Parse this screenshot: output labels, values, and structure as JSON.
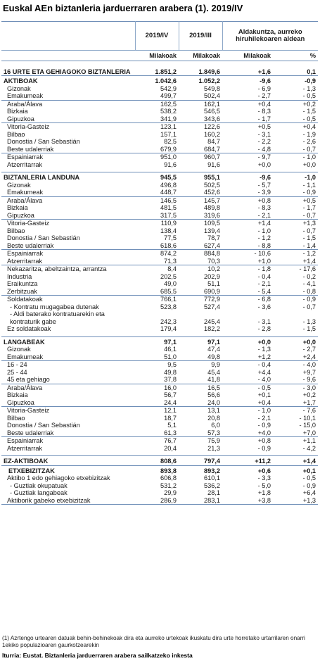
{
  "title": "Euskal AEn biztanleria jarduerraren arabera (1). 2019/IV",
  "headers": {
    "col1": "2019/IV",
    "col2": "2019/III",
    "col3": "Aldakuntza, aurreko hiruhilekoaren aldean",
    "unit1": "Milakoak",
    "unit2": "Milakoak",
    "unit3": "Milakoak",
    "unit4": "%"
  },
  "rows": [
    {
      "label": "16 URTE ETA GEHIAGOKO BIZTANLERIA",
      "v1": "1.851,2",
      "v2": "1.849,6",
      "v3": "+1,6",
      "v4": "0,1",
      "style": "big"
    },
    {
      "label": "AKTIBOAK",
      "v1": "1.042,6",
      "v2": "1.052,2",
      "v3": "-9,6",
      "v4": "-0,9",
      "style": "main"
    },
    {
      "label": "Gizonak",
      "v1": "542,9",
      "v2": "549,8",
      "v3": "- 6,9",
      "v4": "- 1,3",
      "style": "ind1"
    },
    {
      "label": "Emakumeak",
      "v1": "499,7",
      "v2": "502,4",
      "v3": "- 2,7",
      "v4": "- 0,5",
      "style": "ind1"
    },
    {
      "label": "Araba/Álava",
      "v1": "162,5",
      "v2": "162,1",
      "v3": "+0,4",
      "v4": "+0,2",
      "style": "ind1 sep"
    },
    {
      "label": "Bizkaia",
      "v1": "538,2",
      "v2": "546,5",
      "v3": "- 8,3",
      "v4": "- 1,5",
      "style": "ind1"
    },
    {
      "label": "Gipuzkoa",
      "v1": "341,9",
      "v2": "343,6",
      "v3": "- 1,7",
      "v4": "- 0,5",
      "style": "ind1"
    },
    {
      "label": "Vitoria-Gasteiz",
      "v1": "123,1",
      "v2": "122,6",
      "v3": "+0,5",
      "v4": "+0,4",
      "style": "ind1 sep"
    },
    {
      "label": "Bilbao",
      "v1": "157,1",
      "v2": "160,2",
      "v3": "- 3,1",
      "v4": "- 1,9",
      "style": "ind1"
    },
    {
      "label": "Donostia / San Sebastián",
      "v1": "82,5",
      "v2": "84,7",
      "v3": "- 2,2",
      "v4": "- 2,6",
      "style": "ind1"
    },
    {
      "label": "Beste udalerriak",
      "v1": "679,9",
      "v2": "684,7",
      "v3": "- 4,8",
      "v4": "- 0,7",
      "style": "ind1"
    },
    {
      "label": "Espainiarrak",
      "v1": "951,0",
      "v2": "960,7",
      "v3": "- 9,7",
      "v4": "- 1,0",
      "style": "ind1 sep"
    },
    {
      "label": "Atzerritarrak",
      "v1": "91,6",
      "v2": "91,6",
      "v3": "+0,0",
      "v4": "+0,0",
      "style": "ind1"
    },
    {
      "label": "",
      "v1": "",
      "v2": "",
      "v3": "",
      "v4": "",
      "style": "spc"
    },
    {
      "label": "BIZTANLERIA LANDUNA",
      "v1": "945,5",
      "v2": "955,1",
      "v3": "-9,6",
      "v4": "-1,0",
      "style": "main"
    },
    {
      "label": "Gizonak",
      "v1": "496,8",
      "v2": "502,5",
      "v3": "- 5,7",
      "v4": "- 1,1",
      "style": "ind1"
    },
    {
      "label": "Emakumeak",
      "v1": "448,7",
      "v2": "452,6",
      "v3": "- 3,9",
      "v4": "- 0,9",
      "style": "ind1"
    },
    {
      "label": "Araba/Álava",
      "v1": "146,5",
      "v2": "145,7",
      "v3": "+0,8",
      "v4": "+0,5",
      "style": "ind1 sep"
    },
    {
      "label": "Bizkaia",
      "v1": "481,5",
      "v2": "489,8",
      "v3": "- 8,3",
      "v4": "- 1,7",
      "style": "ind1"
    },
    {
      "label": "Gipuzkoa",
      "v1": "317,5",
      "v2": "319,6",
      "v3": "- 2,1",
      "v4": "- 0,7",
      "style": "ind1"
    },
    {
      "label": "Vitoria-Gasteiz",
      "v1": "110,9",
      "v2": "109,5",
      "v3": "+1,4",
      "v4": "+1,3",
      "style": "ind1 sep"
    },
    {
      "label": "Bilbao",
      "v1": "138,4",
      "v2": "139,4",
      "v3": "- 1,0",
      "v4": "- 0,7",
      "style": "ind1"
    },
    {
      "label": "Donostia / San Sebastián",
      "v1": "77,5",
      "v2": "78,7",
      "v3": "- 1,2",
      "v4": "- 1,5",
      "style": "ind1"
    },
    {
      "label": "Beste udalerriak",
      "v1": "618,6",
      "v2": "627,4",
      "v3": "- 8,8",
      "v4": "- 1,4",
      "style": "ind1"
    },
    {
      "label": "Espainiarrak",
      "v1": "874,2",
      "v2": "884,8",
      "v3": "- 10,6",
      "v4": "- 1,2",
      "style": "ind1 sep"
    },
    {
      "label": "Atzerritarrak",
      "v1": "71,3",
      "v2": "70,3",
      "v3": "+1,0",
      "v4": "+1,4",
      "style": "ind1"
    },
    {
      "label": "Nekazaritza, abeltzaintza, arrantza",
      "v1": "8,4",
      "v2": "10,2",
      "v3": "- 1,8",
      "v4": "- 17,6",
      "style": "ind1 sep"
    },
    {
      "label": "Industria",
      "v1": "202,5",
      "v2": "202,9",
      "v3": "- 0,4",
      "v4": "- 0,2",
      "style": "ind1"
    },
    {
      "label": "Eraikuntza",
      "v1": "49,0",
      "v2": "51,1",
      "v3": "- 2,1",
      "v4": "- 4,1",
      "style": "ind1"
    },
    {
      "label": "Zerbitzuak",
      "v1": "685,5",
      "v2": "690,9",
      "v3": "- 5,4",
      "v4": "- 0,8",
      "style": "ind1"
    },
    {
      "label": "Soldatakoak",
      "v1": "766,1",
      "v2": "772,9",
      "v3": "- 6,8",
      "v4": "- 0,9",
      "style": "ind1 sep"
    },
    {
      "label": "- Kontratu mugagabea dutenak",
      "v1": "523,8",
      "v2": "527,4",
      "v3": "- 3,6",
      "v4": "- 0,7",
      "style": "ind2"
    },
    {
      "label": "- Aldi baterako kontratuarekin eta kontraturik gabe",
      "v1": "242,3",
      "v2": "245,4",
      "v3": "- 3,1",
      "v4": "- 1,3",
      "style": "ind2 tall"
    },
    {
      "label": "Ez soldatakoak",
      "v1": "179,4",
      "v2": "182,2",
      "v3": "- 2,8",
      "v4": "- 1,5",
      "style": "ind1"
    },
    {
      "label": "",
      "v1": "",
      "v2": "",
      "v3": "",
      "v4": "",
      "style": "spc"
    },
    {
      "label": "LANGABEAK",
      "v1": "97,1",
      "v2": "97,1",
      "v3": "+0,0",
      "v4": "+0,0",
      "style": "main"
    },
    {
      "label": "Gizonak",
      "v1": "46,1",
      "v2": "47,4",
      "v3": "- 1,3",
      "v4": "- 2,7",
      "style": "ind1"
    },
    {
      "label": "Emakumeak",
      "v1": "51,0",
      "v2": "49,8",
      "v3": "+1,2",
      "v4": "+2,4",
      "style": "ind1"
    },
    {
      "label": "16 - 24",
      "v1": "9,5",
      "v2": "9,9",
      "v3": "- 0,4",
      "v4": "- 4,0",
      "style": "ind1 sep"
    },
    {
      "label": "25 - 44",
      "v1": "49,8",
      "v2": "45,4",
      "v3": "+4,4",
      "v4": "+9,7",
      "style": "ind1"
    },
    {
      "label": "45 eta gehiago",
      "v1": "37,8",
      "v2": "41,8",
      "v3": "- 4,0",
      "v4": "- 9,6",
      "style": "ind1"
    },
    {
      "label": "Araba/Álava",
      "v1": "16,0",
      "v2": "16,5",
      "v3": "- 0,5",
      "v4": "- 3,0",
      "style": "ind1 sep"
    },
    {
      "label": "Bizkaia",
      "v1": "56,7",
      "v2": "56,6",
      "v3": "+0,1",
      "v4": "+0,2",
      "style": "ind1"
    },
    {
      "label": "Gipuzkoa",
      "v1": "24,4",
      "v2": "24,0",
      "v3": "+0,4",
      "v4": "+1,7",
      "style": "ind1"
    },
    {
      "label": "Vitoria-Gasteiz",
      "v1": "12,1",
      "v2": "13,1",
      "v3": "- 1,0",
      "v4": "- 7,6",
      "style": "ind1 sep"
    },
    {
      "label": "Bilbao",
      "v1": "18,7",
      "v2": "20,8",
      "v3": "- 2,1",
      "v4": "- 10,1",
      "style": "ind1"
    },
    {
      "label": "Donostia / San Sebastián",
      "v1": "5,1",
      "v2": "6,0",
      "v3": "- 0,9",
      "v4": "- 15,0",
      "style": "ind1"
    },
    {
      "label": "Beste udalerriak",
      "v1": "61,3",
      "v2": "57,3",
      "v3": "+4,0",
      "v4": "+7,0",
      "style": "ind1"
    },
    {
      "label": "Espainiarrak",
      "v1": "76,7",
      "v2": "75,9",
      "v3": "+0,8",
      "v4": "+1,1",
      "style": "ind1 sep"
    },
    {
      "label": "Atzerritarrak",
      "v1": "20,4",
      "v2": "21,3",
      "v3": "- 0,9",
      "v4": "- 4,2",
      "style": "ind1"
    },
    {
      "label": "",
      "v1": "",
      "v2": "",
      "v3": "",
      "v4": "",
      "style": "spc"
    },
    {
      "label": "EZ-AKTIBOAK",
      "v1": "808,6",
      "v2": "797,4",
      "v3": "+11,2",
      "v4": "+1,4",
      "style": "main"
    },
    {
      "label": "ETXEBIZITZAK",
      "v1": "893,8",
      "v2": "893,2",
      "v3": "+0,6",
      "v4": "+0,1",
      "style": "main ctr"
    },
    {
      "label": "Aktibo 1 edo gehiagoko etxebizitzak",
      "v1": "606,8",
      "v2": "610,1",
      "v3": "- 3,3",
      "v4": "- 0,5",
      "style": "ind1"
    },
    {
      "label": "- Guztiak okupatuak",
      "v1": "531,2",
      "v2": "536,2",
      "v3": "- 5,0",
      "v4": "- 0,9",
      "style": "ind2"
    },
    {
      "label": "- Guztiak langabeak",
      "v1": "29,9",
      "v2": "28,1",
      "v3": "+1,8",
      "v4": "+6,4",
      "style": "ind2"
    },
    {
      "label": "Aktiborik gabeko etxebizitzak",
      "v1": "286,9",
      "v2": "283,1",
      "v3": "+3,8",
      "v4": "+1,3",
      "style": "ind1"
    }
  ],
  "footnote": "(1) Azrtengo urtearen datuak behin-behinekoak dira eta aurreko urtekoak ikuskatu dira urte horretako urtarrilaren onarri 1ekiko populazioaren gaurkotzearekin",
  "source": "Iturria: Eustat. Biztanleria jarduerraren arabera sailkatzeko inkesta"
}
